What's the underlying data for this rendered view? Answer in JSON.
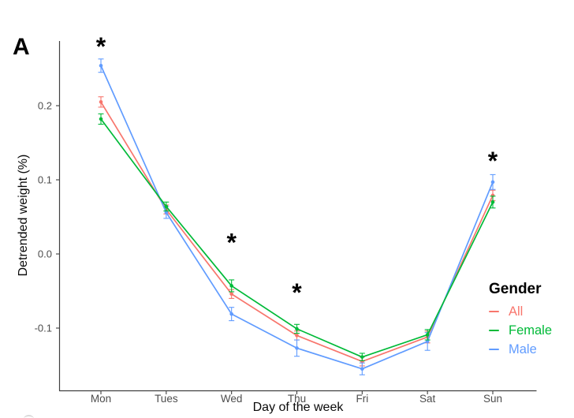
{
  "panel_label": "A",
  "chart_data": {
    "type": "line",
    "title": "",
    "xlabel": "Day of the week",
    "ylabel": "Detrended weight (%)",
    "categories": [
      "Mon",
      "Tues",
      "Wed",
      "Thu",
      "Fri",
      "Sat",
      "Sun"
    ],
    "y_ticks": [
      0.2,
      0.1,
      0.0,
      -0.1
    ],
    "y_tick_labels": [
      "0.2",
      "0.1",
      "0.0",
      "-0.1"
    ],
    "ylim": [
      -0.184,
      0.287
    ],
    "grid": false,
    "axis_color": "#404040",
    "tick_label_color": "#4d4d4d",
    "legend": {
      "title": "Gender",
      "position": "right",
      "entries": [
        {
          "label": "All",
          "color": "#F8766D"
        },
        {
          "label": "Female",
          "color": "#00BA38"
        },
        {
          "label": "Male",
          "color": "#619CFF"
        }
      ]
    },
    "series": [
      {
        "name": "All",
        "color": "#F8766D",
        "values": [
          0.205,
          0.06,
          -0.054,
          -0.11,
          -0.145,
          -0.112,
          0.079
        ],
        "stderr": [
          0.007,
          0.006,
          0.006,
          0.006,
          0.006,
          0.008,
          0.007
        ]
      },
      {
        "name": "Female",
        "color": "#00BA38",
        "values": [
          0.182,
          0.064,
          -0.043,
          -0.101,
          -0.139,
          -0.109,
          0.07
        ],
        "stderr": [
          0.007,
          0.006,
          0.008,
          0.006,
          0.005,
          0.007,
          0.008
        ]
      },
      {
        "name": "Male",
        "color": "#619CFF",
        "values": [
          0.254,
          0.056,
          -0.081,
          -0.127,
          -0.155,
          -0.118,
          0.097
        ],
        "stderr": [
          0.009,
          0.008,
          0.009,
          0.011,
          0.008,
          0.012,
          0.01
        ]
      }
    ],
    "significance_markers": [
      {
        "category": "Mon",
        "symbol": "*",
        "value": 0.285
      },
      {
        "category": "Wed",
        "symbol": "*",
        "value": 0.021
      },
      {
        "category": "Thu",
        "symbol": "*",
        "value": -0.047
      },
      {
        "category": "Sun",
        "symbol": "*",
        "value": 0.131
      }
    ]
  }
}
